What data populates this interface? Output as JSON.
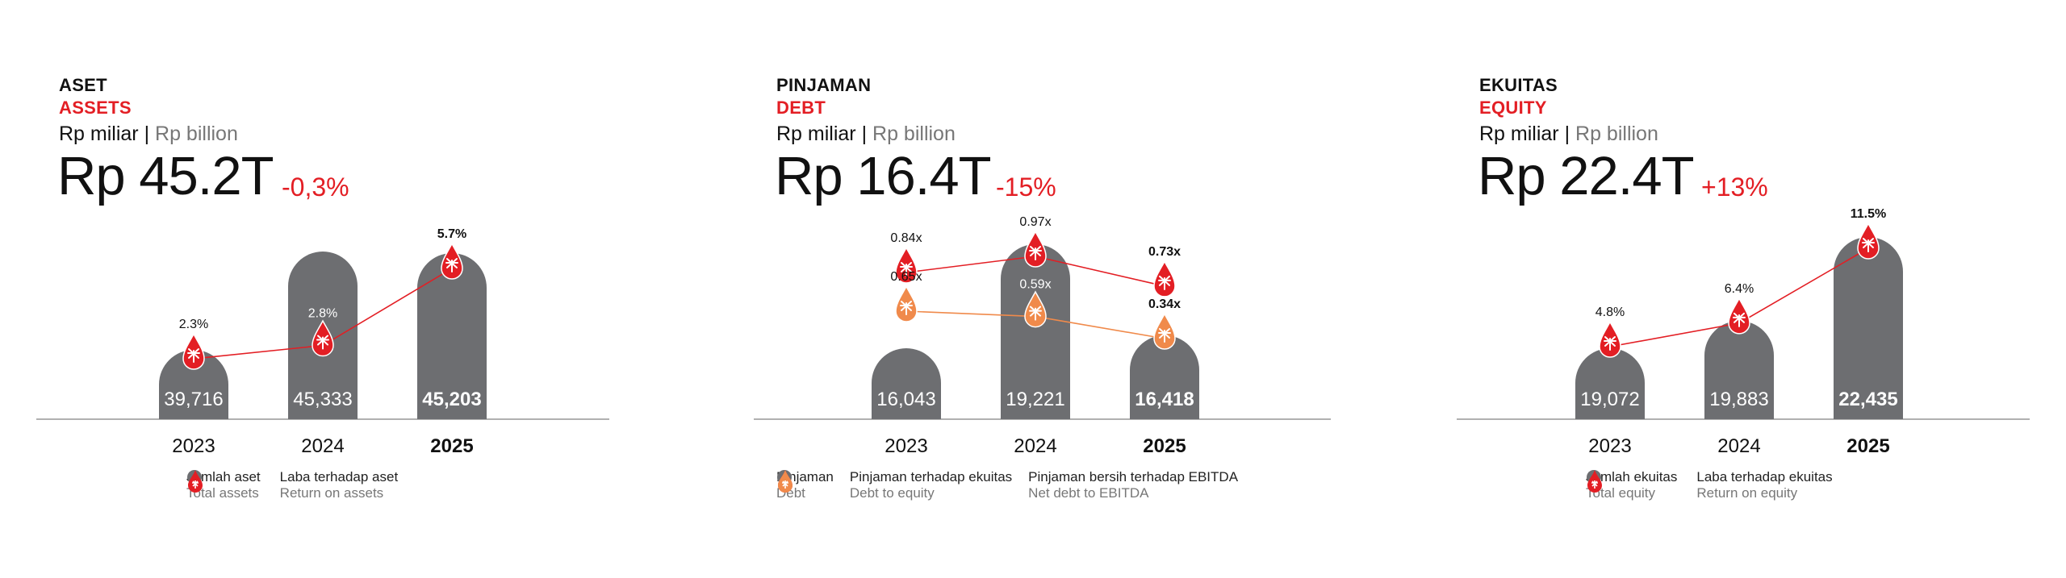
{
  "colors": {
    "bar": "#6d6e71",
    "red": "#e31e24",
    "orange": "#f08a4b",
    "axis": "#b0b0b0",
    "text": "#111111",
    "muted": "#777777"
  },
  "unit": {
    "id": "Rp miliar",
    "sep": "|",
    "en": "Rp billion"
  },
  "chart_data": [
    {
      "type": "bar",
      "title_id": "ASET",
      "title_en": "ASSETS",
      "headline": "Rp 45.2T",
      "change": "-0,3%",
      "categories": [
        "2023",
        "2024",
        "2025"
      ],
      "series": [
        {
          "name": "Jumlah aset",
          "name_en": "Total assets",
          "values": [
            39716,
            45333,
            45203
          ],
          "labels": [
            "39,716",
            "45,333",
            "45,203"
          ]
        }
      ],
      "lines": [
        {
          "name": "Laba terhadap aset",
          "name_en": "Return on assets",
          "color": "red",
          "values": [
            2.3,
            2.8,
            5.7
          ],
          "labels": [
            "2.3%",
            "2.8%",
            "5.7%"
          ],
          "label_inside": [
            false,
            true,
            false
          ]
        }
      ]
    },
    {
      "type": "bar",
      "title_id": "PINJAMAN",
      "title_en": "DEBT",
      "headline": "Rp 16.4T",
      "change": "-15%",
      "categories": [
        "2023",
        "2024",
        "2025"
      ],
      "series": [
        {
          "name": "Pinjaman",
          "name_en": "Debt",
          "values": [
            16043,
            19221,
            16418
          ],
          "labels": [
            "16,043",
            "19,221",
            "16,418"
          ]
        }
      ],
      "lines": [
        {
          "name": "Pinjaman terhadap ekuitas",
          "name_en": "Debt to equity",
          "color": "red",
          "values": [
            0.84,
            0.97,
            0.73
          ],
          "labels": [
            "0.84x",
            "0.97x",
            "0.73x"
          ],
          "label_inside": [
            false,
            false,
            false
          ]
        },
        {
          "name": "Pinjaman bersih terhadap EBITDA",
          "name_en": "Net debt to EBITDA",
          "color": "orange",
          "values": [
            0.65,
            0.59,
            0.34
          ],
          "labels": [
            "0.65x",
            "0.59x",
            "0.34x"
          ],
          "label_inside": [
            false,
            true,
            false
          ]
        }
      ]
    },
    {
      "type": "bar",
      "title_id": "EKUITAS",
      "title_en": "EQUITY",
      "headline": "Rp 22.4T",
      "change": "+13%",
      "categories": [
        "2023",
        "2024",
        "2025"
      ],
      "series": [
        {
          "name": "Jumlah ekuitas",
          "name_en": "Total equity",
          "values": [
            19072,
            19883,
            22435
          ],
          "labels": [
            "19,072",
            "19,883",
            "22,435"
          ]
        }
      ],
      "lines": [
        {
          "name": "Laba terhadap ekuitas",
          "name_en": "Return on equity",
          "color": "red",
          "values": [
            4.8,
            6.4,
            11.5
          ],
          "labels": [
            "4.8%",
            "6.4%",
            "11.5%"
          ],
          "label_inside": [
            false,
            false,
            false
          ]
        }
      ]
    }
  ]
}
